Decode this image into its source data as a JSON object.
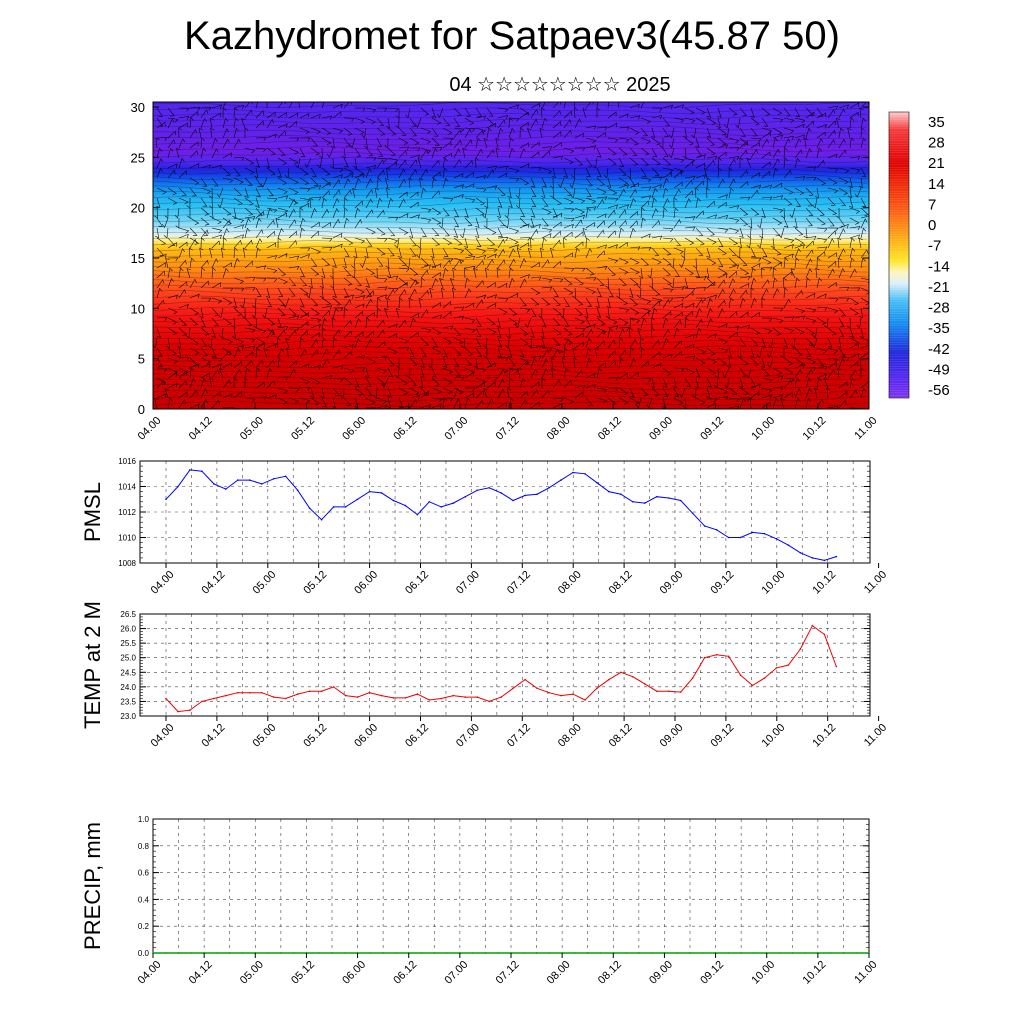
{
  "title": "Kazhydromet for Satpaev3(45.87 50)",
  "subtitle": "04 ☆☆☆☆☆☆☆☆ 2025",
  "time_labels": [
    "04.00",
    "04.12",
    "05.00",
    "05.12",
    "06.00",
    "06.12",
    "07.00",
    "07.12",
    "08.00",
    "08.12",
    "09.00",
    "09.12",
    "10.00",
    "10.12",
    "11.00"
  ],
  "chart_data": [
    {
      "type": "heatmap",
      "name": "cross-section",
      "xlabel": "",
      "ylabel": "",
      "y_ticks": [
        0,
        5,
        10,
        15,
        20,
        25,
        30
      ],
      "ylim": [
        0,
        30.5
      ],
      "colorbar_labels": [
        "35",
        "28",
        "21",
        "14",
        "7",
        "0",
        "-7",
        "-14",
        "-21",
        "-28",
        "-35",
        "-42",
        "-49",
        "-56"
      ],
      "temperature_profile": {
        "heights": [
          0,
          5,
          8,
          10,
          13,
          16,
          17,
          19,
          21,
          23,
          24.5,
          25.5,
          27,
          30.5
        ],
        "values": [
          35,
          30,
          24,
          19,
          10,
          0,
          -14,
          -24,
          -30,
          -40,
          -52,
          -58,
          -56,
          -52
        ]
      },
      "colors": {
        "warm": "#ff1a1a",
        "hot": "#d00000",
        "yellow": "#ffe030",
        "cyan": "#30b8f0",
        "blue": "#1830e0",
        "purple": "#7a2ef0"
      }
    },
    {
      "type": "line",
      "ylabel": "PMSL",
      "y_ticks": [
        "1008",
        "1010",
        "1012",
        "1014",
        "1016"
      ],
      "ylim": [
        1008,
        1016
      ],
      "color": "#0000ff",
      "values": [
        1013.0,
        1014.0,
        1015.3,
        1015.2,
        1014.2,
        1013.8,
        1014.5,
        1014.5,
        1014.2,
        1014.6,
        1014.8,
        1013.7,
        1012.3,
        1011.4,
        1012.4,
        1012.4,
        1013.0,
        1013.6,
        1013.5,
        1012.9,
        1012.5,
        1011.8,
        1012.8,
        1012.4,
        1012.7,
        1013.2,
        1013.7,
        1013.9,
        1013.5,
        1012.9,
        1013.3,
        1013.4,
        1013.9,
        1014.5,
        1015.1,
        1015.0,
        1014.3,
        1013.6,
        1013.4,
        1012.8,
        1012.7,
        1013.2,
        1013.1,
        1012.9,
        1011.9,
        1010.9,
        1010.6,
        1010.0,
        1010.0,
        1010.4,
        1010.3,
        1009.9,
        1009.4,
        1008.8,
        1008.4,
        1008.2,
        1008.5
      ]
    },
    {
      "type": "line",
      "ylabel": "TEMP at 2 M",
      "y_ticks": [
        "23.0",
        "23.5",
        "24.0",
        "24.5",
        "25.0",
        "25.5",
        "26.0",
        "26.5"
      ],
      "ylim": [
        23.0,
        26.5
      ],
      "color": "#ee0000",
      "values": [
        23.6,
        23.15,
        23.2,
        23.5,
        23.6,
        23.7,
        23.8,
        23.8,
        23.8,
        23.65,
        23.6,
        23.75,
        23.85,
        23.85,
        24.0,
        23.7,
        23.65,
        23.8,
        23.7,
        23.62,
        23.62,
        23.75,
        23.55,
        23.6,
        23.7,
        23.65,
        23.65,
        23.5,
        23.65,
        23.95,
        24.25,
        23.95,
        23.8,
        23.7,
        23.75,
        23.55,
        23.95,
        24.25,
        24.5,
        24.35,
        24.1,
        23.85,
        23.85,
        23.82,
        24.3,
        25.0,
        25.1,
        25.05,
        24.4,
        24.05,
        24.3,
        24.65,
        24.75,
        25.3,
        26.1,
        25.8,
        24.7
      ]
    },
    {
      "type": "line",
      "ylabel": "PRECIP, mm",
      "y_ticks": [
        "0.0",
        "0.2",
        "0.4",
        "0.6",
        "0.8",
        "1.0"
      ],
      "ylim": [
        0,
        1.0
      ],
      "color": "#00a000",
      "values": [
        0,
        0,
        0,
        0,
        0,
        0,
        0,
        0,
        0,
        0,
        0,
        0,
        0,
        0,
        0,
        0,
        0,
        0,
        0,
        0,
        0,
        0,
        0,
        0,
        0,
        0,
        0,
        0,
        0,
        0,
        0,
        0,
        0,
        0,
        0,
        0,
        0,
        0,
        0,
        0,
        0,
        0,
        0,
        0,
        0,
        0,
        0,
        0,
        0,
        0,
        0,
        0,
        0,
        0,
        0,
        0,
        0
      ]
    }
  ]
}
